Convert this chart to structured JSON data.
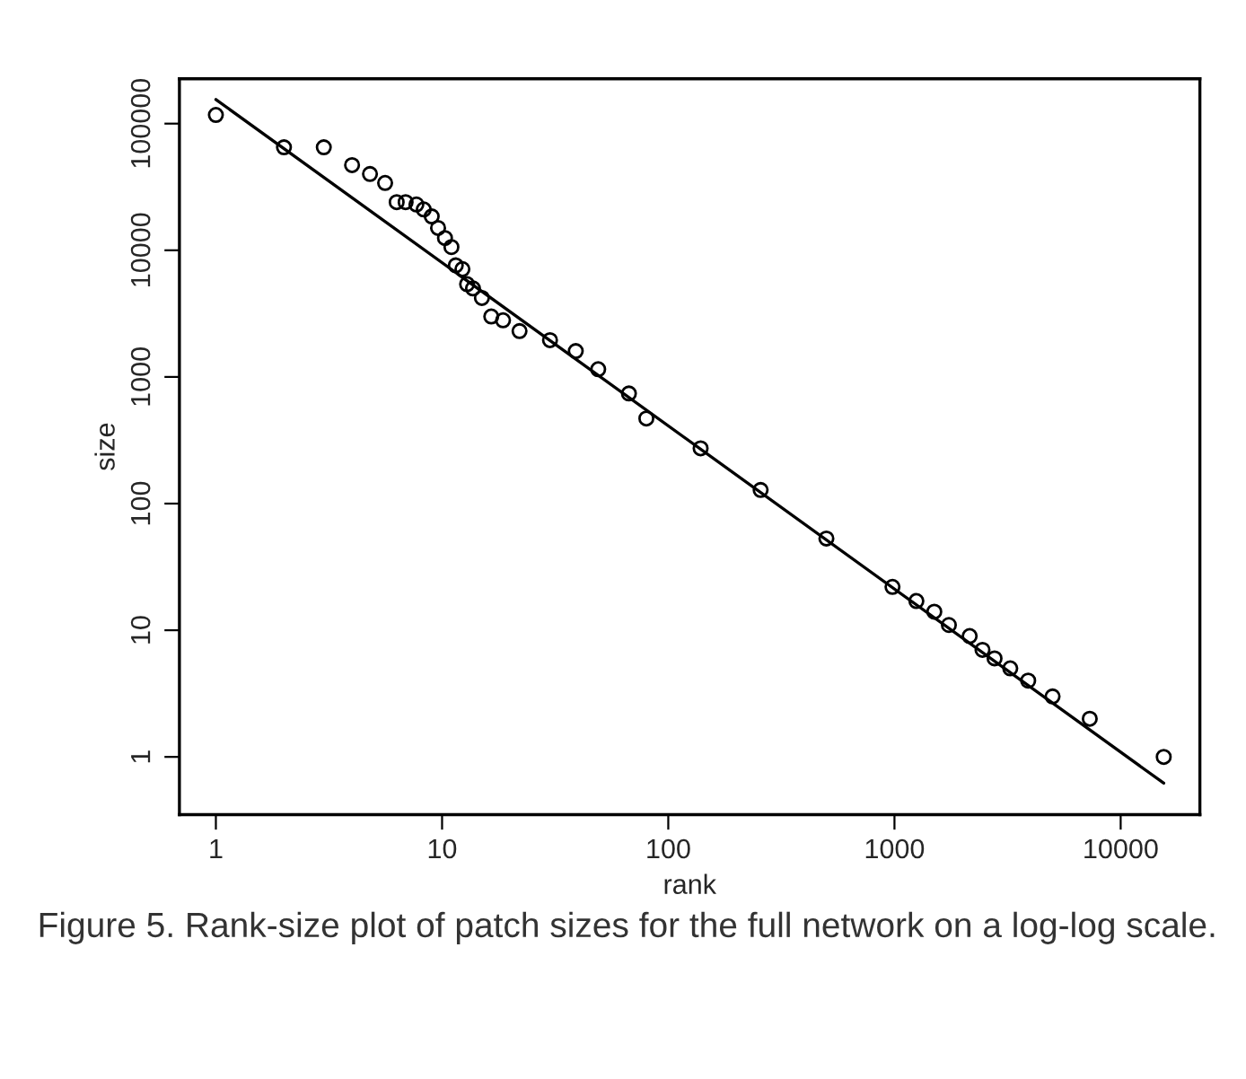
{
  "chart_data": {
    "type": "scatter",
    "xlabel": "rank",
    "ylabel": "size",
    "log": "xy",
    "grid": false,
    "legend": false,
    "xlim": [
      0.69,
      22400
    ],
    "ylim": [
      0.35,
      226000
    ],
    "xticks": [
      1,
      10,
      100,
      1000,
      10000
    ],
    "yticks": [
      1,
      10,
      100,
      1000,
      10000,
      100000
    ],
    "series": [
      {
        "marker": "circle",
        "color": "#000000",
        "x": [
          1,
          2,
          3,
          4,
          4.8,
          5.6,
          6.3,
          6.9,
          7.7,
          8.3,
          9,
          9.6,
          10.3,
          11,
          11.5,
          12.3,
          12.9,
          13.7,
          15,
          16.5,
          18.6,
          22,
          30,
          39,
          49,
          67,
          80,
          139,
          256,
          500,
          980,
          1250,
          1500,
          1740,
          2150,
          2450,
          2770,
          3250,
          3900,
          5000,
          7300,
          15500
        ],
        "values": [
          117000,
          65000,
          65000,
          47000,
          40000,
          34000,
          24000,
          24000,
          23000,
          21000,
          18500,
          15000,
          12500,
          10600,
          7600,
          7100,
          5400,
          5000,
          4200,
          3000,
          2800,
          2300,
          1950,
          1600,
          1150,
          740,
          470,
          273,
          128,
          53,
          22,
          17,
          14,
          11,
          9,
          7,
          6,
          5,
          4,
          3,
          2,
          1
        ]
      },
      {
        "type": "line",
        "marker": "none",
        "line_style": "solid",
        "color": "#000000",
        "x": [
          1,
          15500
        ],
        "values": [
          155000,
          0.62
        ]
      }
    ],
    "annotations": [
      "Figure 5. Rank-size plot of patch sizes for the full network on a log-log scale."
    ]
  }
}
